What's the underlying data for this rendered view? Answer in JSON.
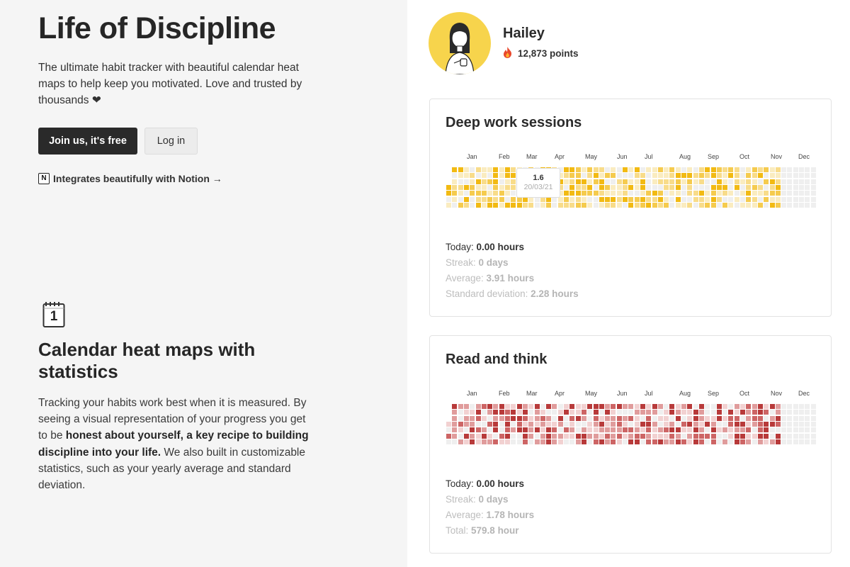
{
  "hero": {
    "title": "Life of Discipline",
    "subtitle": "The ultimate habit tracker with beautiful calendar heat maps to help keep you motivated. Love and trusted by thousands ❤",
    "join_label": "Join us, it's free",
    "login_label": "Log in",
    "notion_text": "Integrates beautifully with Notion →",
    "notion_logo": "N"
  },
  "feature": {
    "icon_number": "1",
    "title": "Calendar heat maps with statistics",
    "text_part1": "Tracking your habits work best when it is measured. By seeing a visual representation of your progress you get to be ",
    "text_bold": "honest about yourself, a key recipe to building discipline into your life.",
    "text_part2": " We also built in customizable statistics, such as your yearly average and standard deviation."
  },
  "user": {
    "name": "Hailey",
    "points": "12,873 points",
    "points_icon": "fire-icon"
  },
  "months": [
    "Jan",
    "Feb",
    "Mar",
    "Apr",
    "May",
    "Jun",
    "Jul",
    "Aug",
    "Sep",
    "Oct",
    "Nov",
    "Dec"
  ],
  "cards": [
    {
      "title": "Deep work sessions",
      "palette": [
        "#efefef",
        "#faecc0",
        "#f8dc8a",
        "#f5cb4e",
        "#f2ba13"
      ],
      "tooltip": {
        "value": "1.6",
        "date": "20/03/21"
      },
      "stats": [
        {
          "label": "Today: ",
          "value": "0.00 hours",
          "muted": false
        },
        {
          "label": "Streak: ",
          "value": "0 days",
          "muted": true
        },
        {
          "label": "Average: ",
          "value": "3.91 hours",
          "muted": true
        },
        {
          "label": "Standard deviation: ",
          "value": "2.28 hours",
          "muted": true
        }
      ]
    },
    {
      "title": "Read and think",
      "palette": [
        "#efefef",
        "#f2d1d1",
        "#e09c9c",
        "#cd6565",
        "#b83a3a"
      ],
      "tooltip": null,
      "stats": [
        {
          "label": "Today: ",
          "value": "0.00 hours",
          "muted": false
        },
        {
          "label": "Streak: ",
          "value": "0 days",
          "muted": true
        },
        {
          "label": "Average: ",
          "value": "1.78 hours",
          "muted": true
        },
        {
          "label": "Total: ",
          "value": "579.8 hour",
          "muted": true
        }
      ]
    }
  ]
}
